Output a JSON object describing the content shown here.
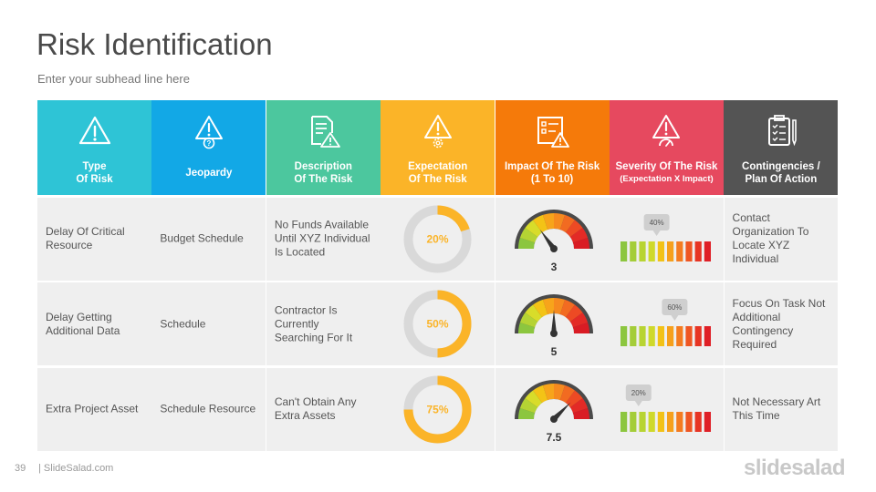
{
  "slide": {
    "title": "Risk Identification",
    "subhead": "Enter your subhead  line here",
    "page_number": "39",
    "site": "| SlideSalad.com",
    "brand": "slidesalad"
  },
  "colors": {
    "teal": "#2ec4d6",
    "blue": "#12a8e6",
    "green": "#4cc79e",
    "yellow": "#fbb428",
    "orange": "#f57a0a",
    "red": "#e6495f",
    "dark": "#545454",
    "row_bg": "#efefef",
    "donut_track": "#d9d9d9",
    "donut_fill": "#fbb428"
  },
  "headers": [
    {
      "label": "Type\nOf Risk",
      "icon": "warning-icon"
    },
    {
      "label": "Jeopardy",
      "icon": "warning-question-icon"
    },
    {
      "label": "Description\nOf The Risk",
      "icon": "document-warning-icon"
    },
    {
      "label": "Expectation\nOf The Risk",
      "icon": "warning-gear-icon"
    },
    {
      "label": "Impact Of The Risk\n(1 To 10)",
      "icon": "checklist-warning-icon"
    },
    {
      "label": "Severity Of The Risk",
      "sub": "(Expectation X Impact)",
      "icon": "warning-gauge-icon"
    },
    {
      "label": "Contingencies /\nPlan Of Action",
      "icon": "clipboard-pen-icon"
    }
  ],
  "rows": [
    {
      "type": "Delay Of Critical\nResource",
      "jeopardy": "Budget Schedule",
      "description": "No Funds Available\nUntil XYZ Individual\nIs Located",
      "expectation_label": "20%",
      "expectation": 0.2,
      "impact_label": "3",
      "impact": 3,
      "severity_label": "40%",
      "severity": 0.4,
      "plan": "Contact\nOrganization To\nLocate XYZ\nIndividual"
    },
    {
      "type": "Delay Getting\nAdditional Data",
      "jeopardy": "Schedule",
      "description": "Contractor Is\nCurrently\nSearching For It",
      "expectation_label": "50%",
      "expectation": 0.5,
      "impact_label": "5",
      "impact": 5,
      "severity_label": "60%",
      "severity": 0.6,
      "plan": "Focus On Task Not\nAdditional\nContingency\nRequired"
    },
    {
      "type": "Extra Project Asset",
      "jeopardy": "Schedule Resource",
      "description": "Can't Obtain Any\nExtra Assets",
      "expectation_label": "75%",
      "expectation": 0.75,
      "impact_label": "7.5",
      "impact": 7.5,
      "severity_label": "20%",
      "severity": 0.2,
      "plan": "Not Necessary Art\nThis Time"
    }
  ]
}
